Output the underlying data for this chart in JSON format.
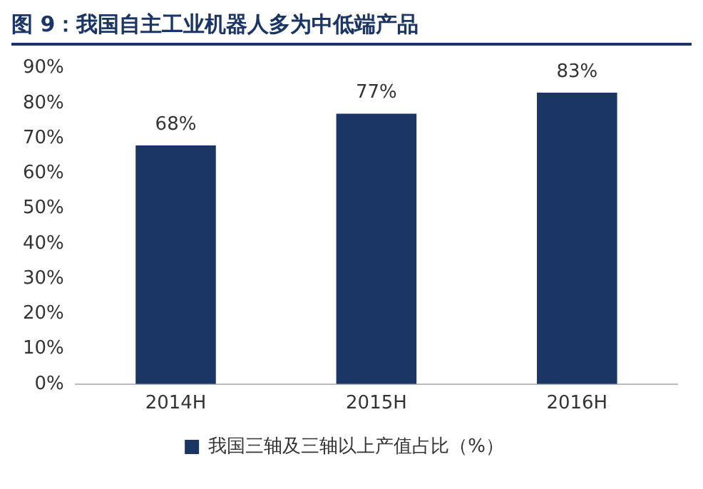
{
  "chart_data": {
    "type": "bar",
    "title": "图 9：我国自主工业机器人多为中低端产品",
    "categories": [
      "2014H",
      "2015H",
      "2016H"
    ],
    "series": [
      {
        "name": "我国三轴及三轴以上产值占比（%）",
        "color": "#1b3664",
        "values": [
          68,
          77,
          83
        ],
        "value_labels": [
          "68%",
          "77%",
          "83%"
        ]
      }
    ],
    "ylim": [
      0,
      90
    ],
    "yticks": [
      {
        "value": 0,
        "label": "0%"
      },
      {
        "value": 10,
        "label": "10%"
      },
      {
        "value": 20,
        "label": "20%"
      },
      {
        "value": 30,
        "label": "30%"
      },
      {
        "value": 40,
        "label": "40%"
      },
      {
        "value": 50,
        "label": "50%"
      },
      {
        "value": 60,
        "label": "60%"
      },
      {
        "value": 70,
        "label": "70%"
      },
      {
        "value": 80,
        "label": "80%"
      },
      {
        "value": 90,
        "label": "90%"
      }
    ],
    "grid": false,
    "legend": "bottom"
  }
}
